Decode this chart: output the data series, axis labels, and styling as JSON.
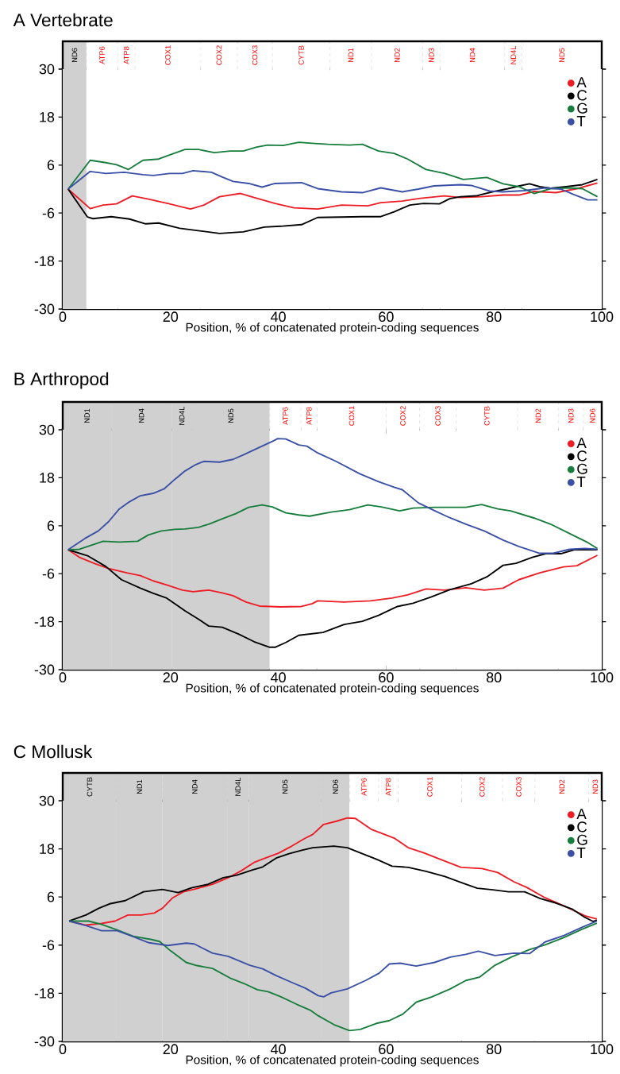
{
  "chart_data": [
    {
      "type": "line",
      "title": "A  Vertebrate",
      "xlabel": "Position, % of concatenated protein-coding sequences",
      "xlim": [
        0,
        100
      ],
      "xticks": [
        0,
        20,
        40,
        60,
        80,
        100
      ],
      "ylim": [
        -30,
        30
      ],
      "yticks": [
        -30,
        -18,
        -6,
        6,
        18,
        30
      ],
      "legend": "top right",
      "bands": [
        {
          "axis": "x",
          "from": 0,
          "to": 4.4,
          "label": "ND6",
          "color": "#d0d0d0"
        },
        {
          "axis": "x",
          "from": 4.4,
          "to": 10.2,
          "label": "ATP6",
          "color": "#ffffff"
        },
        {
          "axis": "x",
          "from": 10.2,
          "to": 13.4,
          "label": "ATP8",
          "color": "#ffffff"
        },
        {
          "axis": "x",
          "from": 13.4,
          "to": 25.6,
          "label": "COX1",
          "color": "#ffffff"
        },
        {
          "axis": "x",
          "from": 25.6,
          "to": 32.4,
          "label": "COX2",
          "color": "#ffffff"
        },
        {
          "axis": "x",
          "from": 32.4,
          "to": 38.9,
          "label": "COX3",
          "color": "#ffffff"
        },
        {
          "axis": "x",
          "from": 38.9,
          "to": 49.6,
          "label": "CYTB",
          "color": "#ffffff"
        },
        {
          "axis": "x",
          "from": 49.6,
          "to": 57.3,
          "label": "ND1",
          "color": "#ffffff"
        },
        {
          "axis": "x",
          "from": 57.3,
          "to": 66.8,
          "label": "ND2",
          "color": "#ffffff"
        },
        {
          "axis": "x",
          "from": 66.8,
          "to": 70,
          "label": "ND3",
          "color": "#ffffff"
        },
        {
          "axis": "x",
          "from": 70,
          "to": 82,
          "label": "ND4",
          "color": "#ffffff"
        },
        {
          "axis": "x",
          "from": 82,
          "to": 85.2,
          "label": "ND4L",
          "color": "#ffffff"
        },
        {
          "axis": "x",
          "from": 85.2,
          "to": 100,
          "label": "ND5",
          "color": "#ffffff"
        }
      ],
      "series": [
        {
          "name": "A",
          "color": "#ee1c24",
          "x": [
            1,
            5.1,
            7.5,
            10,
            12.9,
            15.9,
            19.8,
            23.7,
            26.2,
            29.1,
            33,
            35.5,
            39.4,
            42.9,
            47.3,
            51.7,
            56.6,
            59,
            63,
            66.4,
            70.8,
            73.8,
            77.7,
            81.7,
            84.6,
            87.5,
            91.5,
            95.4,
            99.2
          ],
          "values": [
            0,
            -4.9,
            -4.0,
            -3.7,
            -1.7,
            -2.5,
            -3.7,
            -5.0,
            -4.0,
            -1.9,
            -1.1,
            -2.1,
            -3.6,
            -4.7,
            -5.0,
            -4.0,
            -4.2,
            -3.4,
            -3.0,
            -2.3,
            -1.7,
            -2.1,
            -1.9,
            -1.5,
            -1.5,
            -0.6,
            -0.9,
            0.1,
            1.5
          ]
        },
        {
          "name": "C",
          "color": "#000000",
          "x": [
            1,
            4.6,
            5.6,
            9,
            12.4,
            15.4,
            17.8,
            21.7,
            25.7,
            29.1,
            33.5,
            37.4,
            40.4,
            44.3,
            47.3,
            51.7,
            55.6,
            59,
            61.5,
            64.4,
            66.9,
            69.9,
            71.8,
            73.8,
            76.7,
            79.7,
            82.6,
            85.1,
            86.6,
            88.5,
            90.5,
            93.4,
            96.4,
            99.2
          ],
          "values": [
            0,
            -7.0,
            -7.4,
            -6.9,
            -7.5,
            -8.7,
            -8.5,
            -9.8,
            -10.5,
            -11.1,
            -10.7,
            -9.5,
            -9.3,
            -8.9,
            -7.1,
            -7.0,
            -6.9,
            -6.9,
            -5.7,
            -4.0,
            -3.6,
            -3.7,
            -2.4,
            -1.9,
            -1.7,
            -0.7,
            0.1,
            0.9,
            1.3,
            0.6,
            0.2,
            0.6,
            1.1,
            2.4
          ]
        },
        {
          "name": "G",
          "color": "#177d3c",
          "x": [
            1,
            5.1,
            8,
            10,
            12.2,
            14.9,
            17.8,
            19.8,
            22.7,
            25.2,
            28.1,
            31.1,
            33.5,
            36,
            38,
            40.9,
            43.8,
            46.8,
            49.2,
            53.2,
            55.6,
            58.6,
            61.5,
            64,
            67.4,
            70.9,
            74.3,
            78.7,
            81.7,
            84.6,
            87.5,
            90.5,
            93.9,
            96.4,
            99.2
          ],
          "values": [
            0,
            7.2,
            6.6,
            6.1,
            4.9,
            7.2,
            7.5,
            8.5,
            9.9,
            9.9,
            9.1,
            9.5,
            9.5,
            10.5,
            11,
            10.9,
            11.7,
            11.4,
            11.2,
            11.0,
            11.2,
            9.5,
            8.9,
            7.5,
            4.9,
            3.9,
            2.4,
            2.9,
            1.3,
            0.6,
            -1.1,
            0.1,
            0.3,
            0.1,
            -1.9
          ]
        },
        {
          "name": "T",
          "color": "#3a4fa6",
          "x": [
            1,
            5.1,
            8,
            11.4,
            14.9,
            16.8,
            19.8,
            22.2,
            24.2,
            27.6,
            29.6,
            31.6,
            34.5,
            37,
            39.4,
            44.3,
            47.3,
            51.7,
            55.6,
            59,
            63,
            66,
            68.9,
            73.8,
            75.8,
            79.2,
            81.7,
            85.6,
            89.5,
            92.4,
            94.9,
            97.4,
            99.2
          ],
          "values": [
            0,
            4.4,
            3.9,
            4.2,
            3.6,
            3.4,
            3.9,
            3.9,
            4.6,
            4.2,
            3.0,
            1.9,
            1.4,
            0.5,
            1.4,
            1.6,
            0.1,
            -0.7,
            -0.9,
            0.3,
            -0.7,
            0,
            0.8,
            1.1,
            0.9,
            -0.5,
            -0.7,
            -0.4,
            0.3,
            0,
            -1.4,
            -2.7,
            -2.7
          ]
        }
      ]
    },
    {
      "type": "line",
      "title": "B  Arthropod",
      "xlabel": "Position, % of concatenated protein-coding sequences",
      "xlim": [
        0,
        100
      ],
      "xticks": [
        0,
        20,
        40,
        60,
        80,
        100
      ],
      "ylim": [
        -30,
        30
      ],
      "yticks": [
        -30,
        -18,
        -6,
        6,
        18,
        30
      ],
      "legend": "top right",
      "bands": [
        {
          "axis": "x",
          "from": 0,
          "to": 9,
          "label": "ND1",
          "color": "#d0d0d0"
        },
        {
          "axis": "x",
          "from": 9,
          "to": 20.2,
          "label": "ND4",
          "color": "#d0d0d0"
        },
        {
          "axis": "x",
          "from": 20.2,
          "to": 24,
          "label": "ND4L",
          "color": "#d0d0d0"
        },
        {
          "axis": "x",
          "from": 24,
          "to": 38.4,
          "label": "ND5",
          "color": "#d0d0d0"
        },
        {
          "axis": "x",
          "from": 38.4,
          "to": 44.2,
          "label": "ATP6",
          "color": "#ffffff"
        },
        {
          "axis": "x",
          "from": 44.2,
          "to": 47.2,
          "label": "ATP8",
          "color": "#ffffff"
        },
        {
          "axis": "x",
          "from": 47.2,
          "to": 60,
          "label": "COX1",
          "color": "#ffffff"
        },
        {
          "axis": "x",
          "from": 60,
          "to": 66.2,
          "label": "COX2",
          "color": "#ffffff"
        },
        {
          "axis": "x",
          "from": 66.2,
          "to": 73,
          "label": "COX3",
          "color": "#ffffff"
        },
        {
          "axis": "x",
          "from": 73,
          "to": 84.4,
          "label": "CYTB",
          "color": "#ffffff"
        },
        {
          "axis": "x",
          "from": 84.4,
          "to": 92,
          "label": "ND2",
          "color": "#ffffff"
        },
        {
          "axis": "x",
          "from": 92,
          "to": 96.6,
          "label": "ND3",
          "color": "#ffffff"
        },
        {
          "axis": "x",
          "from": 96.6,
          "to": 100,
          "label": "ND6",
          "color": "#ffffff"
        }
      ],
      "series": [
        {
          "name": "A",
          "color": "#ee1c24",
          "x": [
            1,
            3.1,
            6,
            8.5,
            11.9,
            14.4,
            16.8,
            19.3,
            22.2,
            24.2,
            27.1,
            29.6,
            31.6,
            34,
            36.5,
            40.4,
            44.3,
            46.3,
            47.3,
            52.2,
            57.1,
            61.1,
            64,
            67.4,
            70.8,
            74.8,
            78.2,
            81.7,
            84.6,
            88.5,
            92.9,
            95.4,
            99.2
          ],
          "values": [
            0,
            -1.9,
            -3.5,
            -4.7,
            -5.8,
            -6.5,
            -7.8,
            -8.8,
            -10.1,
            -10.5,
            -10.1,
            -10.8,
            -11.5,
            -13.1,
            -14.1,
            -14.3,
            -14.2,
            -13.5,
            -12.8,
            -13.1,
            -12.8,
            -12.1,
            -11.3,
            -9.8,
            -10.1,
            -9.5,
            -10.1,
            -9.6,
            -7.5,
            -5.8,
            -4.3,
            -4.0,
            -1.4
          ]
        },
        {
          "name": "C",
          "color": "#000000",
          "x": [
            1,
            4.6,
            8,
            10.9,
            14.4,
            16.8,
            19.3,
            22.7,
            25.2,
            27.1,
            29.6,
            32.6,
            35.5,
            38.4,
            39.4,
            41.4,
            43.8,
            48.3,
            52.2,
            55.6,
            58.6,
            62.1,
            65,
            68.4,
            71.8,
            75.8,
            78.7,
            81.7,
            84.1,
            87.1,
            89.6,
            92.4,
            94.9,
            99.2
          ],
          "values": [
            0,
            -1.5,
            -4.2,
            -7.5,
            -9.6,
            -10.9,
            -12.1,
            -15.3,
            -17.4,
            -19.1,
            -19.4,
            -21.1,
            -23.0,
            -24.4,
            -24.4,
            -23.2,
            -21.4,
            -20.7,
            -18.7,
            -17.9,
            -16.4,
            -14.2,
            -13.4,
            -11.8,
            -10.0,
            -8.5,
            -6.8,
            -3.9,
            -3.4,
            -1.9,
            -1.0,
            -1.0,
            0,
            0
          ]
        },
        {
          "name": "G",
          "color": "#177d3c",
          "x": [
            1,
            3.1,
            7.5,
            10.5,
            13.9,
            15.9,
            18.3,
            20.8,
            22.7,
            25.2,
            27.1,
            29.6,
            32.1,
            34.5,
            37,
            38.9,
            41.4,
            43.8,
            45.8,
            49.8,
            53.2,
            56.6,
            59.1,
            62.5,
            65,
            68.9,
            74.8,
            77.7,
            80.7,
            83.1,
            87.5,
            90.5,
            94.4,
            97.4,
            99.2
          ],
          "values": [
            0,
            0.1,
            2.1,
            1.9,
            2.1,
            3.7,
            4.7,
            5.1,
            5.2,
            5.6,
            6.4,
            7.7,
            9.0,
            10.6,
            11.2,
            10.7,
            9.2,
            8.7,
            8.4,
            9.4,
            10.0,
            11.2,
            10.7,
            9.7,
            10.4,
            10.6,
            10.6,
            11.3,
            10.2,
            9.7,
            7.9,
            6.4,
            3.8,
            1.8,
            0.3
          ]
        },
        {
          "name": "T",
          "color": "#3a4fa6",
          "x": [
            1,
            4.1,
            6.6,
            8.5,
            10.5,
            12.4,
            14.4,
            16.8,
            18.8,
            20.8,
            22.7,
            24.7,
            26.2,
            29.1,
            31.6,
            33.5,
            36.5,
            38.9,
            39.9,
            41.4,
            43.8,
            45.3,
            47.3,
            50.7,
            55.1,
            58.6,
            61.5,
            63,
            66,
            68.9,
            71.8,
            74.8,
            78.2,
            81.7,
            84.6,
            88.5,
            91,
            94,
            96.9,
            99.2
          ],
          "values": [
            0,
            2.8,
            4.7,
            7.0,
            10.2,
            12.0,
            13.5,
            14.1,
            15.2,
            17.6,
            19.7,
            21.3,
            22.1,
            21.9,
            22.6,
            23.7,
            25.6,
            27.1,
            27.8,
            27.7,
            26.2,
            25.9,
            24.2,
            22.1,
            19.0,
            17.0,
            15.6,
            15.0,
            11.7,
            9.8,
            8.0,
            6.4,
            4.7,
            2.4,
            0.8,
            -0.9,
            -0.9,
            0.1,
            0.3,
            0.1
          ]
        }
      ]
    },
    {
      "type": "line",
      "title": "C  Mollusk",
      "xlabel": "Position, % of concatenated protein-coding sequences",
      "xlim": [
        0,
        100
      ],
      "xticks": [
        0,
        20,
        40,
        60,
        80,
        100
      ],
      "ylim": [
        -30,
        30
      ],
      "yticks": [
        -30,
        -18,
        -6,
        6,
        18,
        30
      ],
      "legend": "top right",
      "bands": [
        {
          "axis": "x",
          "from": 0,
          "to": 10,
          "label": "CYTB",
          "color": "#d0d0d0"
        },
        {
          "axis": "x",
          "from": 10,
          "to": 18.5,
          "label": "ND1",
          "color": "#d0d0d0"
        },
        {
          "axis": "x",
          "from": 18.5,
          "to": 30.5,
          "label": "ND4",
          "color": "#d0d0d0"
        },
        {
          "axis": "x",
          "from": 30.5,
          "to": 34.5,
          "label": "ND4L",
          "color": "#d0d0d0"
        },
        {
          "axis": "x",
          "from": 34.5,
          "to": 48,
          "label": "ND5",
          "color": "#d0d0d0"
        },
        {
          "axis": "x",
          "from": 48,
          "to": 53.2,
          "label": "ND6",
          "color": "#d0d0d0"
        },
        {
          "axis": "x",
          "from": 53.2,
          "to": 58.6,
          "label": "ATP6",
          "color": "#ffffff"
        },
        {
          "axis": "x",
          "from": 58.6,
          "to": 62.2,
          "label": "ATP8",
          "color": "#ffffff"
        },
        {
          "axis": "x",
          "from": 62.2,
          "to": 74,
          "label": "COX1",
          "color": "#ffffff"
        },
        {
          "axis": "x",
          "from": 74,
          "to": 81.6,
          "label": "COX2",
          "color": "#ffffff"
        },
        {
          "axis": "x",
          "from": 81.6,
          "to": 87.6,
          "label": "COX3",
          "color": "#ffffff"
        },
        {
          "axis": "x",
          "from": 87.6,
          "to": 97.6,
          "label": "ND2",
          "color": "#ffffff"
        },
        {
          "axis": "x",
          "from": 97.6,
          "to": 100,
          "label": "ND3",
          "color": "#ffffff"
        }
      ],
      "series": [
        {
          "name": "A",
          "color": "#ee1c24",
          "x": [
            1.2,
            4.3,
            7.2,
            9.7,
            12.1,
            14.6,
            17,
            18.5,
            20.4,
            22.4,
            24.9,
            27.8,
            30.7,
            33.2,
            35.6,
            37.6,
            40,
            42.5,
            44.9,
            46.4,
            48.4,
            50.8,
            52.8,
            54.3,
            57.2,
            59.7,
            61.6,
            64.1,
            67,
            70,
            73.9,
            77.8,
            80.7,
            83.7,
            86.1,
            89.5,
            93,
            96.9,
            99.1
          ],
          "values": [
            0,
            -1.0,
            -0.6,
            0,
            1.5,
            1.5,
            2.0,
            3.2,
            5.8,
            7.3,
            8.1,
            9.2,
            10.8,
            12.6,
            14.7,
            15.7,
            16.9,
            18.7,
            20.6,
            21.6,
            24.1,
            24.9,
            25.7,
            25.6,
            22.9,
            21.6,
            20.6,
            18.3,
            17.0,
            15.4,
            13.4,
            13.1,
            12.1,
            9.8,
            8.4,
            5.8,
            3.8,
            1.3,
            0.5
          ]
        },
        {
          "name": "C",
          "color": "#000000",
          "x": [
            1.2,
            4.3,
            6.7,
            8.7,
            11.6,
            15,
            18.5,
            21.4,
            23.9,
            26.8,
            29.8,
            32.2,
            35.1,
            37.1,
            39.6,
            42,
            44.5,
            46.4,
            50.3,
            52.8,
            55.2,
            58.2,
            61.1,
            64.1,
            67.4,
            70.9,
            74.4,
            76.9,
            79.8,
            82.7,
            85.7,
            88.6,
            91.5,
            94.5,
            96.9,
            98.4,
            99.1
          ],
          "values": [
            0,
            1.5,
            3.2,
            4.3,
            5.1,
            7.3,
            7.9,
            7.1,
            8.3,
            9.1,
            10.8,
            11.4,
            12.7,
            13.5,
            15.7,
            16.8,
            17.7,
            18.3,
            18.7,
            18.3,
            17.0,
            15.4,
            13.7,
            13.4,
            12.4,
            11.1,
            9.4,
            8.2,
            7.8,
            7.3,
            7.3,
            5.6,
            4.5,
            3.0,
            0.9,
            -0.1,
            0.2
          ]
        },
        {
          "name": "G",
          "color": "#177d3c",
          "x": [
            1.2,
            4.8,
            7.2,
            10.1,
            13.1,
            16.5,
            18,
            20,
            22.9,
            24.9,
            27.8,
            31.2,
            33.7,
            36.1,
            38.1,
            40.5,
            43.5,
            45.9,
            47.4,
            50.3,
            53.2,
            55.2,
            58.2,
            60.6,
            63.1,
            65.6,
            68.5,
            71.9,
            74.8,
            77.3,
            80.2,
            83.2,
            86.6,
            89.5,
            93,
            96.4,
            99.1
          ],
          "values": [
            0,
            0,
            -0.8,
            -2.2,
            -3.8,
            -4.6,
            -5.1,
            -7.4,
            -10.3,
            -11.1,
            -11.8,
            -14.3,
            -15.6,
            -17.1,
            -17.6,
            -18.9,
            -20.8,
            -22.2,
            -23.6,
            -25.8,
            -27.3,
            -27.0,
            -25.5,
            -24.8,
            -23.2,
            -20.2,
            -18.9,
            -16.9,
            -14.8,
            -14.0,
            -11.0,
            -9.0,
            -7.1,
            -5.9,
            -4.1,
            -2.0,
            -0.5
          ]
        },
        {
          "name": "T",
          "color": "#3a4fa6",
          "x": [
            1.2,
            4.3,
            7.2,
            10.1,
            13.1,
            16,
            19.5,
            22.9,
            24.4,
            27.8,
            30.7,
            34.7,
            37.1,
            39.6,
            42.5,
            45,
            47.4,
            48.4,
            49.8,
            52.8,
            56.2,
            58.7,
            60.6,
            62.6,
            65.6,
            69,
            71.9,
            74.8,
            77.1,
            80.2,
            83.7,
            86.6,
            89.5,
            93,
            96.4,
            99.1
          ],
          "values": [
            0,
            -1.1,
            -2.4,
            -2.4,
            -3.9,
            -5.4,
            -6.1,
            -5.5,
            -5.7,
            -8.0,
            -8.8,
            -11.0,
            -11.9,
            -13.6,
            -15.3,
            -16.7,
            -18.6,
            -18.9,
            -17.9,
            -16.9,
            -14.8,
            -13.0,
            -10.7,
            -10.5,
            -11.2,
            -10.3,
            -9.0,
            -8.3,
            -7.5,
            -8.6,
            -8.0,
            -8.1,
            -5.2,
            -3.6,
            -1.5,
            0
          ]
        }
      ]
    }
  ]
}
